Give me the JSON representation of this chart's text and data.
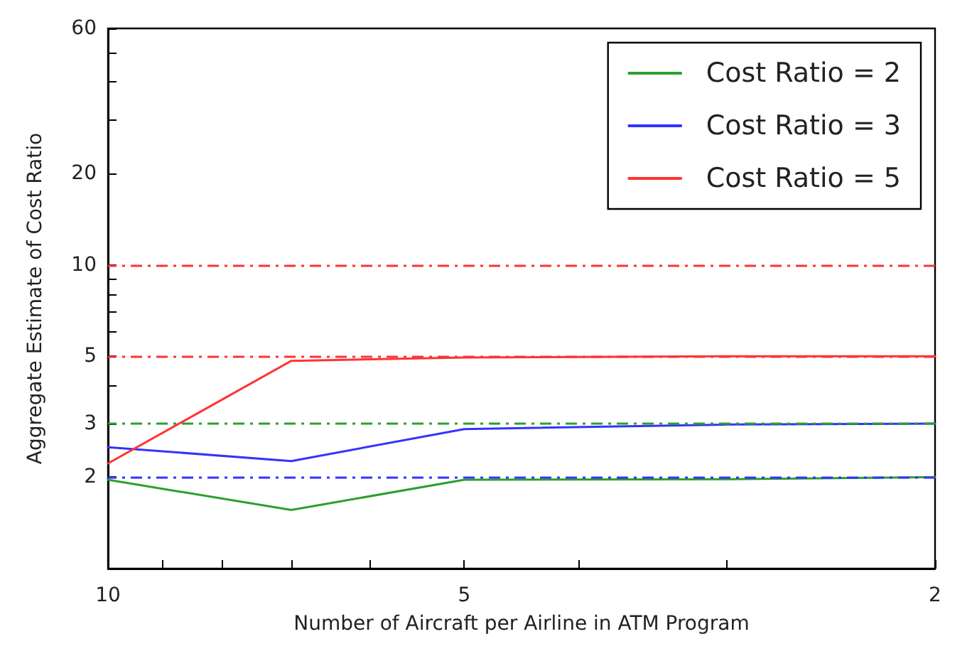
{
  "chart_data": {
    "type": "line",
    "xlabel": "Number of Aircraft per Airline in ATM Program",
    "ylabel": "Aggregate Estimate of Cost Ratio",
    "log": "xy",
    "x": [
      10,
      7,
      5,
      3,
      2
    ],
    "xlim": [
      10,
      2
    ],
    "xticks": [
      10,
      {
        "value": 9,
        "label": null
      },
      {
        "value": 8,
        "label": null
      },
      {
        "value": 7,
        "label": null
      },
      {
        "value": 6,
        "label": null
      },
      5,
      {
        "value": 4,
        "label": null
      },
      {
        "value": 3,
        "label": null
      },
      2
    ],
    "ylim": [
      1,
      60
    ],
    "yticks": [
      2,
      3,
      {
        "value": 4,
        "label": null
      },
      5,
      {
        "value": 6,
        "label": null
      },
      {
        "value": 7,
        "label": null
      },
      {
        "value": 8,
        "label": null
      },
      {
        "value": 9,
        "label": null
      },
      10,
      20,
      {
        "value": 30,
        "label": null
      },
      {
        "value": 40,
        "label": null
      },
      {
        "value": 50,
        "label": null
      },
      60
    ],
    "series": [
      {
        "name": "Cost Ratio = 2",
        "color": "#2ca02c",
        "values": [
          1.96,
          1.56,
          1.96,
          1.97,
          2.0
        ]
      },
      {
        "name": "Cost Ratio = 3",
        "color": "#3333ff",
        "values": [
          2.51,
          2.26,
          2.88,
          2.98,
          3.0
        ]
      },
      {
        "name": "Cost Ratio = 5",
        "color": "#ff3333",
        "values": [
          2.22,
          4.83,
          4.95,
          5.0,
          5.0
        ]
      }
    ],
    "ref_lines": [
      {
        "axis": "y",
        "value": 10,
        "color": "#ff3333",
        "line_style": "dashed"
      },
      {
        "axis": "y",
        "value": 5,
        "color": "#ff3333",
        "line_style": "dashed"
      },
      {
        "axis": "y",
        "value": 3,
        "color": "#2ca02c",
        "line_style": "dashed"
      },
      {
        "axis": "y",
        "value": 2,
        "color": "#3333ff",
        "line_style": "dashed"
      }
    ],
    "legend": "top right",
    "grid": false,
    "marker": "none",
    "line_style": "solid"
  }
}
